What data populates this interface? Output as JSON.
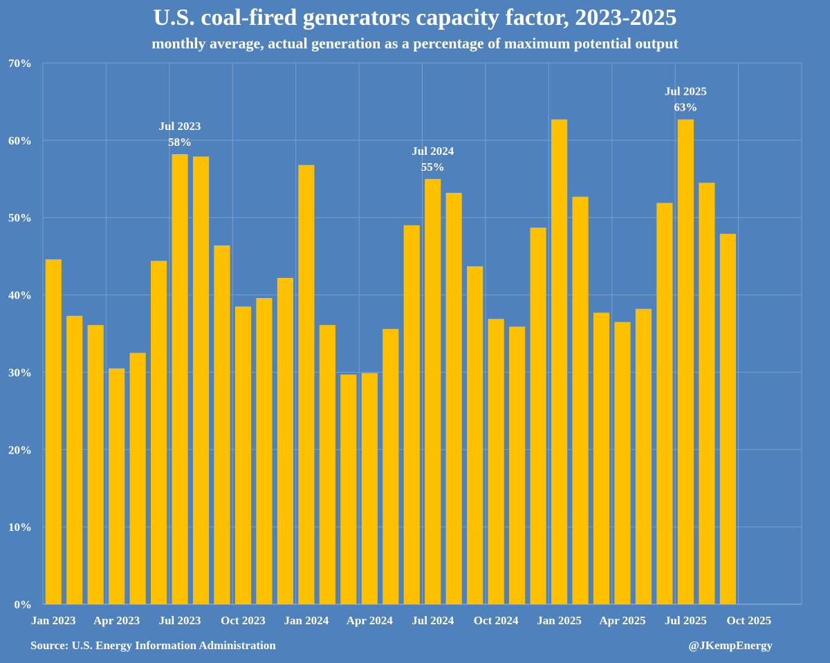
{
  "chart_data": {
    "type": "bar",
    "title": "U.S. coal-fired generators capacity factor, 2023-2025",
    "subtitle": "monthly average, actual generation as a percentage of maximum potential output",
    "xlabel": "",
    "ylabel": "",
    "ylim": [
      0,
      70
    ],
    "yticks": [
      "0%",
      "10%",
      "20%",
      "30%",
      "40%",
      "50%",
      "60%",
      "70%"
    ],
    "grid": true,
    "bar_color": "#ffc000",
    "categories": [
      "Jan 2023",
      "Feb 2023",
      "Mar 2023",
      "Apr 2023",
      "May 2023",
      "Jun 2023",
      "Jul 2023",
      "Aug 2023",
      "Sep 2023",
      "Oct 2023",
      "Nov 2023",
      "Dec 2023",
      "Jan 2024",
      "Feb 2024",
      "Mar 2024",
      "Apr 2024",
      "May 2024",
      "Jun 2024",
      "Jul 2024",
      "Aug 2024",
      "Sep 2024",
      "Oct 2024",
      "Nov 2024",
      "Dec 2024",
      "Jan 2025",
      "Feb 2025",
      "Mar 2025",
      "Apr 2025",
      "May 2025",
      "Jun 2025",
      "Jul 2025",
      "Aug 2025",
      "Sep 2025",
      "Oct 2025",
      "Nov 2025",
      "Dec 2025"
    ],
    "values": [
      44.6,
      37.3,
      36.1,
      30.5,
      32.5,
      44.4,
      58.2,
      57.9,
      46.4,
      38.5,
      39.6,
      42.2,
      56.8,
      36.1,
      29.7,
      29.9,
      35.6,
      49.0,
      55.0,
      53.2,
      43.7,
      36.9,
      35.9,
      48.7,
      62.7,
      52.7,
      37.7,
      36.5,
      38.2,
      51.9,
      62.7,
      54.5,
      47.9,
      null,
      null,
      null
    ],
    "xtick_labels": [
      {
        "index": 0,
        "label": "Jan 2023"
      },
      {
        "index": 3,
        "label": "Apr 2023"
      },
      {
        "index": 6,
        "label": "Jul 2023"
      },
      {
        "index": 9,
        "label": "Oct 2023"
      },
      {
        "index": 12,
        "label": "Jan 2024"
      },
      {
        "index": 15,
        "label": "Apr 2024"
      },
      {
        "index": 18,
        "label": "Jul 2024"
      },
      {
        "index": 21,
        "label": "Oct 2024"
      },
      {
        "index": 24,
        "label": "Jan 2025"
      },
      {
        "index": 27,
        "label": "Apr 2025"
      },
      {
        "index": 30,
        "label": "Jul 2025"
      },
      {
        "index": 33,
        "label": "Oct 2025"
      }
    ],
    "annotations": [
      {
        "index": 6,
        "line1": "Jul 2023",
        "line2": "58%"
      },
      {
        "index": 18,
        "line1": "Jul 2024",
        "line2": "55%"
      },
      {
        "index": 30,
        "line1": "Jul 2025",
        "line2": "63%"
      }
    ]
  },
  "footer": {
    "source": "Source: U.S. Energy Information Administration",
    "credit": "@JKempEnergy"
  }
}
